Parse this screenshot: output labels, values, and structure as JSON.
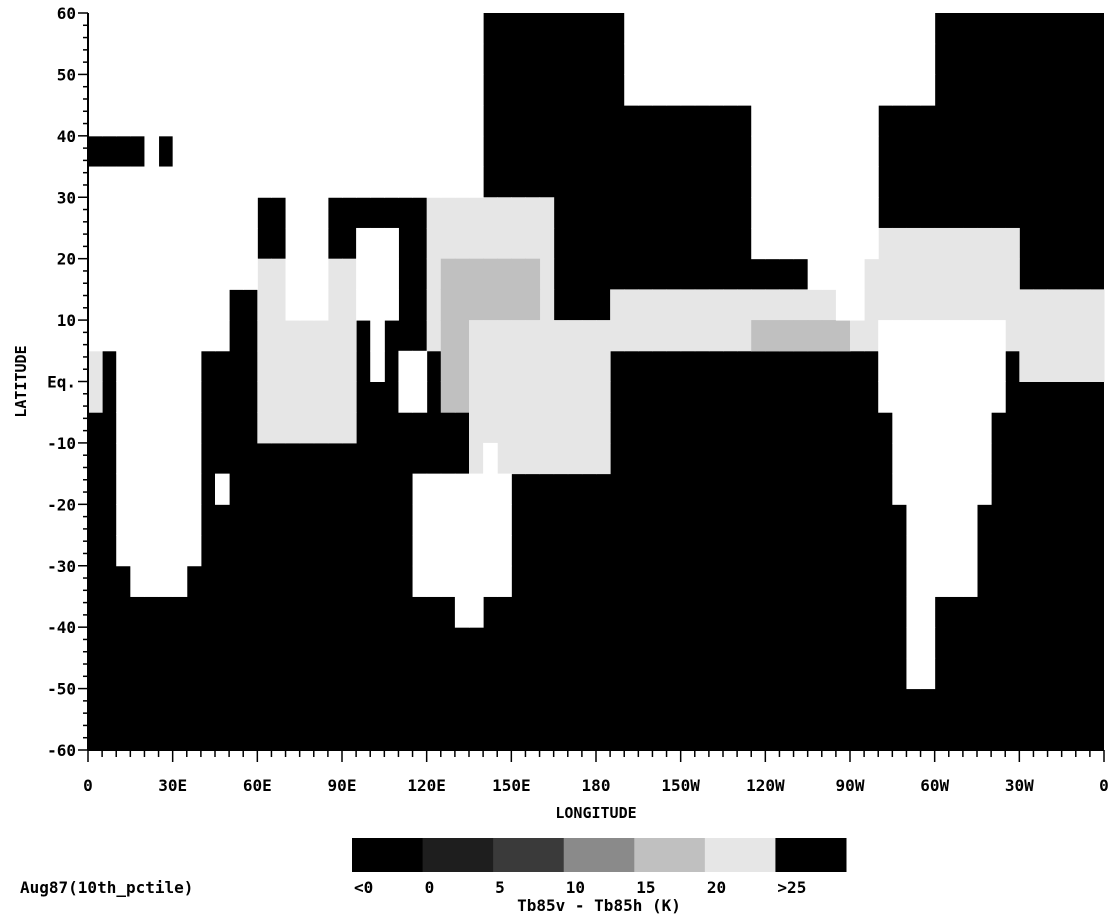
{
  "chart_data": {
    "type": "heatmap",
    "xlabel": "LONGITUDE",
    "ylabel": "LATITUDE",
    "x_tick_labels": [
      "0",
      "30E",
      "60E",
      "90E",
      "120E",
      "150E",
      "180",
      "150W",
      "120W",
      "90W",
      "60W",
      "30W",
      "0"
    ],
    "y_tick_labels": [
      "-60",
      "-50",
      "-40",
      "-30",
      "-20",
      "-10",
      "Eq.",
      "10",
      "20",
      "30",
      "40",
      "50",
      "60"
    ],
    "xlim": [
      0,
      360
    ],
    "ylim": [
      -60,
      60
    ],
    "cell_size_deg": 5,
    "colorbar": {
      "colors": [
        "#000000",
        "#1e1e1e",
        "#3a3a3a",
        "#8a8a8a",
        "#c0c0c0",
        "#e6e6e6",
        "#000000"
      ],
      "tick_labels": [
        "<0",
        "0",
        "5",
        "10",
        "15",
        "20",
        ">25"
      ],
      "label": "Tb85v - Tb85h (K)"
    },
    "annotation": "Aug87(10th_pctile)",
    "land_color": "#ffffff",
    "ocean_zones": [
      {
        "category": 5,
        "lon": [
          60,
          95
        ],
        "lat": [
          -10,
          20
        ]
      },
      {
        "category": 5,
        "lon": [
          120,
          165
        ],
        "lat": [
          5,
          30
        ]
      },
      {
        "category": 4,
        "lon": [
          125,
          160
        ],
        "lat": [
          -5,
          20
        ]
      },
      {
        "category": 5,
        "lon": [
          135,
          185
        ],
        "lat": [
          -15,
          10
        ]
      },
      {
        "category": 5,
        "lon": [
          185,
          270
        ],
        "lat": [
          5,
          15
        ]
      },
      {
        "category": 4,
        "lon": [
          235,
          270
        ],
        "lat": [
          5,
          10
        ]
      },
      {
        "category": 5,
        "lon": [
          270,
          330
        ],
        "lat": [
          5,
          25
        ]
      },
      {
        "category": 5,
        "lon": [
          330,
          360
        ],
        "lat": [
          0,
          15
        ]
      },
      {
        "category": 5,
        "lon": [
          0,
          5
        ],
        "lat": [
          -5,
          5
        ]
      }
    ]
  }
}
